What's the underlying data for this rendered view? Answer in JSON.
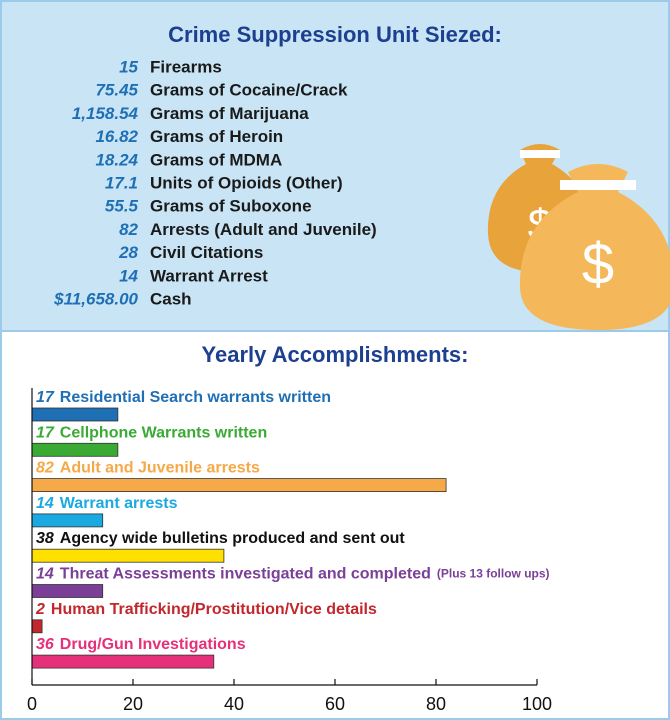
{
  "seized": {
    "title": "Crime Suppression Unit Siezed:",
    "items": [
      {
        "amount": "15",
        "label": "Firearms"
      },
      {
        "amount": "75.45",
        "label": "Grams of Cocaine/Crack"
      },
      {
        "amount": "1,158.54",
        "label": "Grams of Marijuana"
      },
      {
        "amount": "16.82",
        "label": "Grams of Heroin"
      },
      {
        "amount": "18.24",
        "label": "Grams of MDMA"
      },
      {
        "amount": "17.1",
        "label": "Units of Opioids (Other)"
      },
      {
        "amount": "55.5",
        "label": "Grams of Suboxone"
      },
      {
        "amount": "82",
        "label": "Arrests (Adult and Juvenile)"
      },
      {
        "amount": "28",
        "label": "Civil Citations"
      },
      {
        "amount": "14",
        "label": "Warrant Arrest"
      },
      {
        "amount": "$11,658.00",
        "label": "Cash"
      }
    ]
  },
  "chart_data": {
    "type": "bar",
    "orientation": "horizontal",
    "title": "Yearly Accomplishments:",
    "categories": [
      "Residential Search warrants written",
      "Cellphone Warrants written",
      "Adult and Juvenile arrests",
      "Warrant arrests",
      "Agency wide bulletins produced and sent out",
      "Threat Assessments investigated and completed",
      "Human Trafficking/Prostitution/Vice details",
      "Drug/Gun Investigations"
    ],
    "values": [
      17,
      17,
      82,
      14,
      38,
      14,
      2,
      36
    ],
    "colors": [
      "#1f6fb5",
      "#3aaa35",
      "#f6a948",
      "#1ba9e1",
      "#ffe000",
      "#7b3f98",
      "#c1272d",
      "#e6307a"
    ],
    "label_colors": [
      "#1f6fb5",
      "#3aaa35",
      "#f6a948",
      "#1ba9e1",
      "#111111",
      "#7b3f98",
      "#c1272d",
      "#e6307a"
    ],
    "annotation": "(Plus 13 follow ups)",
    "xlim": [
      0,
      100
    ],
    "xticks": [
      0,
      20,
      40,
      60,
      80,
      100
    ]
  }
}
